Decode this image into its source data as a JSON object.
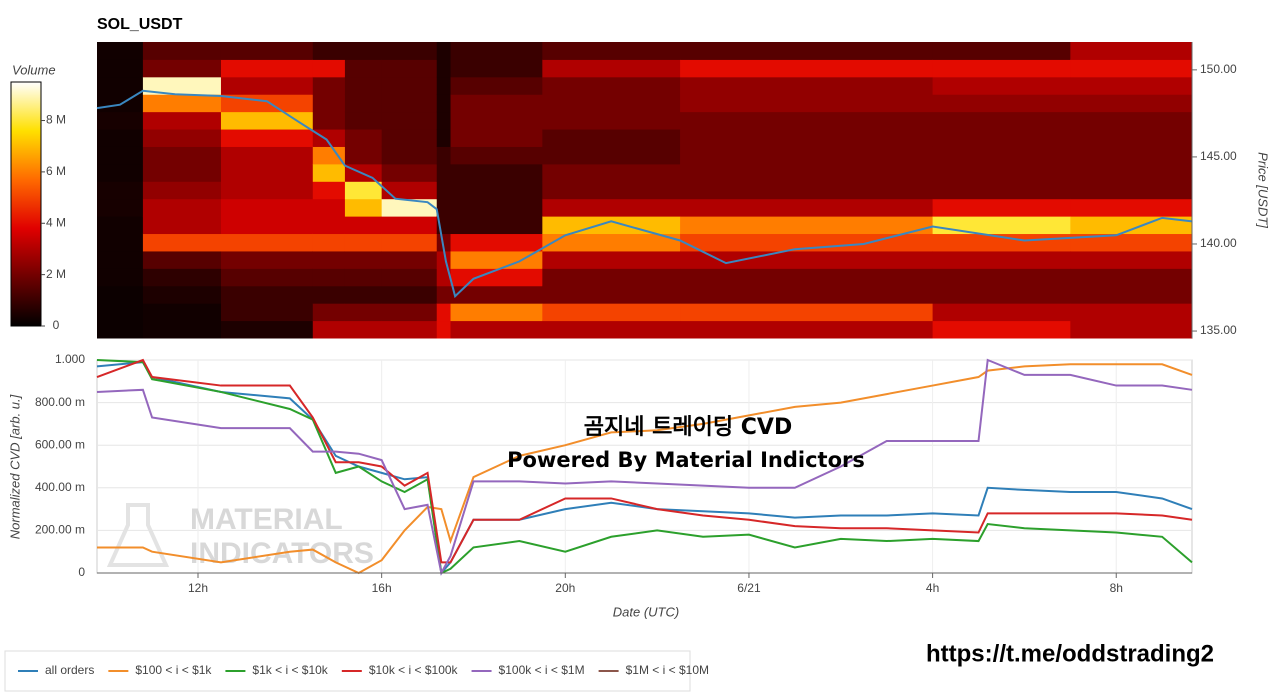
{
  "chart_data": [
    {
      "type": "heatmap",
      "title": "SOL_USDT",
      "ylabel": "Price [USDT]",
      "xlim": [
        9.8,
        33.65
      ],
      "ylim": [
        134.6,
        151.6
      ],
      "yticks": [
        {
          "value": 135,
          "label": "135.00"
        },
        {
          "value": 140,
          "label": "140.00"
        },
        {
          "value": 145,
          "label": "145.00"
        },
        {
          "value": 150,
          "label": "150.00"
        }
      ],
      "x_edges": [
        9.8,
        10.8,
        12.5,
        14.5,
        15.2,
        16,
        17.2,
        17.5,
        19.5,
        22.5,
        28,
        31,
        33.65
      ],
      "y_edges": [
        134.6,
        135.6,
        136.6,
        137.6,
        138.6,
        139.6,
        140.6,
        141.6,
        142.6,
        143.6,
        144.6,
        145.6,
        146.6,
        147.6,
        148.6,
        149.6,
        150.6,
        151.6
      ],
      "values": [
        [
          0.2,
          0.2,
          0.2,
          0.3,
          0.3,
          0.3,
          0.3,
          0.4,
          0.4,
          0.3,
          0.3,
          0.3,
          0.4,
          0.3,
          0.3,
          0.3,
          0.3
        ],
        [
          0.3,
          0.3,
          0.5,
          0.8,
          1.5,
          5,
          3,
          3,
          2.5,
          2,
          2,
          2.5,
          3,
          6,
          9,
          2,
          1.5
        ],
        [
          0.5,
          1,
          1,
          1.5,
          2,
          5,
          3.5,
          3.5,
          3,
          3,
          3,
          4,
          7,
          5,
          3,
          4,
          1.5
        ],
        [
          3,
          2,
          1,
          1.5,
          2,
          5,
          3.5,
          3.5,
          4,
          7,
          6,
          3,
          2,
          2,
          2,
          4,
          1
        ],
        [
          3,
          2,
          1,
          1.5,
          2,
          5,
          3.5,
          7,
          8,
          3,
          2,
          2,
          1.5,
          1.5,
          1.5,
          1.5,
          1
        ],
        [
          3,
          2,
          1,
          1.5,
          2,
          5,
          3.5,
          9,
          3,
          2,
          1.5,
          1.5,
          1.5,
          1.5,
          1.5,
          1.5,
          1
        ],
        [
          4,
          4,
          2,
          3,
          3,
          2,
          1,
          1,
          1,
          1,
          1,
          0.5,
          0.5,
          0.5,
          0.5,
          0.5,
          0.5
        ],
        [
          3,
          6,
          2,
          4,
          6,
          4,
          1,
          1,
          1,
          1,
          1.5,
          2,
          2,
          2,
          1.5,
          1,
          1
        ],
        [
          3,
          5,
          2,
          2,
          3,
          6,
          7,
          3,
          2,
          2,
          1.5,
          1.5,
          2,
          2,
          2,
          3,
          1.5
        ],
        [
          3,
          5,
          2,
          2,
          3,
          5,
          6,
          3,
          2,
          2,
          2,
          2,
          2,
          2.5,
          2.5,
          4,
          1.5
        ],
        [
          4,
          3,
          2,
          2,
          3,
          5,
          8,
          4,
          2,
          2,
          2,
          2,
          2,
          2.5,
          3,
          4,
          1.5
        ],
        [
          3,
          3,
          2,
          2,
          3,
          5,
          7,
          4,
          2,
          2,
          2,
          2,
          2,
          2.5,
          3,
          4,
          3
        ]
      ],
      "colorbar": {
        "label": "Volume",
        "lim": [
          0,
          9.5
        ],
        "ticks": [
          0,
          {
            "value": 2,
            "label": "2 M"
          },
          {
            "value": 4,
            "label": "4 M"
          },
          {
            "value": 6,
            "label": "6 M"
          },
          {
            "value": 8,
            "label": "8 M"
          }
        ],
        "colors": [
          "#000000",
          "#6e0000",
          "#e00000",
          "#ff6a00",
          "#ffe000",
          "#ffffff"
        ]
      },
      "price_line": {
        "color": "#3a87c0",
        "x": [
          9.8,
          10.3,
          10.8,
          11.5,
          12.5,
          13.5,
          14.2,
          14.8,
          15.2,
          15.8,
          16.3,
          17.0,
          17.2,
          17.4,
          17.6,
          18.0,
          19.0,
          20.0,
          21.0,
          22.5,
          23.5,
          25,
          26.5,
          28,
          30,
          32,
          33.0,
          33.65
        ],
        "values": [
          147.8,
          148.0,
          148.8,
          148.6,
          148.5,
          148.2,
          147.0,
          146.0,
          144.5,
          143.8,
          142.6,
          142.4,
          142.0,
          139.0,
          137.0,
          138.0,
          139.0,
          140.5,
          141.3,
          140.2,
          138.9,
          139.7,
          140.0,
          141.0,
          140.2,
          140.5,
          141.5,
          141.3
        ]
      }
    },
    {
      "type": "line",
      "xlabel": "Date (UTC)",
      "ylabel": "Normalized CVD [arb. u.]",
      "xlim": [
        9.8,
        33.65
      ],
      "ylim": [
        0,
        1
      ],
      "grid": true,
      "legend": "bottom",
      "xticks": [
        {
          "value": 12,
          "label": "12h"
        },
        {
          "value": 16,
          "label": "16h"
        },
        {
          "value": 20,
          "label": "20h"
        },
        {
          "value": 24,
          "label": "6/21"
        },
        {
          "value": 28,
          "label": "4h"
        },
        {
          "value": 32,
          "label": "8h"
        }
      ],
      "yticks": [
        0,
        {
          "value": 0.2,
          "label": "200.00 m"
        },
        {
          "value": 0.4,
          "label": "400.00 m"
        },
        {
          "value": 0.6,
          "label": "600.00 m"
        },
        {
          "value": 0.8,
          "label": "800.00 m"
        },
        {
          "value": 1,
          "label": "1.000"
        }
      ],
      "x": [
        9.8,
        10.8,
        11,
        12.5,
        14,
        14.5,
        15,
        15.5,
        16,
        16.5,
        17,
        17.3,
        17.5,
        18,
        19,
        20,
        21,
        22,
        23,
        24,
        25,
        26,
        27,
        28,
        29,
        29.2,
        30,
        31,
        32,
        33,
        33.65
      ],
      "series": [
        {
          "name": "all orders",
          "color": "#2f7fb8",
          "values": [
            0.97,
            0.99,
            0.92,
            0.85,
            0.82,
            0.72,
            0.55,
            0.5,
            0.47,
            0.44,
            0.45,
            0.0,
            0.05,
            0.25,
            0.25,
            0.3,
            0.33,
            0.3,
            0.29,
            0.28,
            0.26,
            0.27,
            0.27,
            0.28,
            0.27,
            0.4,
            0.39,
            0.38,
            0.38,
            0.35,
            0.3
          ]
        },
        {
          "name": "$100 < i < $1k",
          "color": "#f28e2b",
          "values": [
            0.12,
            0.12,
            0.1,
            0.05,
            0.1,
            0.11,
            0.05,
            0.0,
            0.06,
            0.2,
            0.31,
            0.3,
            0.15,
            0.45,
            0.55,
            0.6,
            0.66,
            0.67,
            0.7,
            0.74,
            0.78,
            0.8,
            0.84,
            0.88,
            0.92,
            0.95,
            0.97,
            0.98,
            0.98,
            0.98,
            0.93
          ]
        },
        {
          "name": "$1k < i < $10k",
          "color": "#2ca02c",
          "values": [
            1.0,
            0.99,
            0.91,
            0.85,
            0.77,
            0.72,
            0.47,
            0.5,
            0.43,
            0.38,
            0.44,
            0.0,
            0.02,
            0.12,
            0.15,
            0.1,
            0.17,
            0.2,
            0.17,
            0.18,
            0.12,
            0.16,
            0.15,
            0.16,
            0.15,
            0.23,
            0.21,
            0.2,
            0.19,
            0.17,
            0.05
          ]
        },
        {
          "name": "$10k < i < $100k",
          "color": "#d62728",
          "values": [
            0.92,
            1.0,
            0.92,
            0.88,
            0.88,
            0.73,
            0.52,
            0.52,
            0.5,
            0.41,
            0.47,
            0.05,
            0.05,
            0.25,
            0.25,
            0.35,
            0.35,
            0.3,
            0.27,
            0.25,
            0.22,
            0.21,
            0.21,
            0.2,
            0.19,
            0.28,
            0.28,
            0.28,
            0.28,
            0.27,
            0.25
          ]
        },
        {
          "name": "$100k < i < $1M",
          "color": "#9467bd",
          "values": [
            0.85,
            0.86,
            0.73,
            0.68,
            0.68,
            0.57,
            0.57,
            0.56,
            0.53,
            0.3,
            0.32,
            0.0,
            0.08,
            0.43,
            0.43,
            0.42,
            0.43,
            0.42,
            0.41,
            0.4,
            0.4,
            0.5,
            0.62,
            0.62,
            0.62,
            1.0,
            0.93,
            0.93,
            0.88,
            0.88,
            0.86
          ]
        },
        {
          "name": "$1M < i < $10M",
          "color": "#8c564b",
          "values": [
            null,
            null,
            null,
            null,
            null,
            null,
            null,
            null,
            null,
            null,
            null,
            null,
            null,
            null,
            null,
            null,
            null,
            null,
            null,
            null,
            null,
            null,
            null,
            null,
            null,
            null,
            null,
            null,
            null,
            null,
            null
          ]
        }
      ]
    }
  ],
  "overlay": {
    "title": "곰지네 트레이딩 CVD",
    "subtitle": "Powered By Material Indictors"
  },
  "watermark": [
    "MATERIAL",
    "INDICATORS"
  ],
  "link": "https://t.me/oddstrading2"
}
